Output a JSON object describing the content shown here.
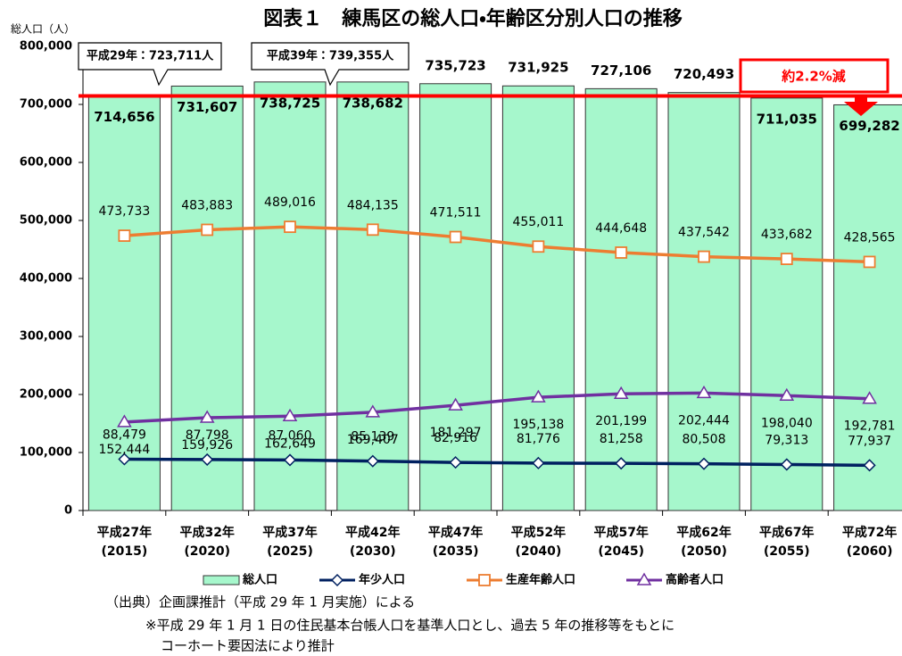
{
  "chart_data": {
    "type": "bar",
    "title": "図表１　練馬区の総人口・年齢区分別人口の推移",
    "y_axis_label": "総人口（人）",
    "categories": [
      [
        "平成27年",
        "(2015)"
      ],
      [
        "平成32年",
        "(2020)"
      ],
      [
        "平成37年",
        "(2025)"
      ],
      [
        "平成42年",
        "(2030)"
      ],
      [
        "平成47年",
        "(2035)"
      ],
      [
        "平成52年",
        "(2040)"
      ],
      [
        "平成57年",
        "(2045)"
      ],
      [
        "平成62年",
        "(2050)"
      ],
      [
        "平成67年",
        "(2055)"
      ],
      [
        "平成72年",
        "(2060)"
      ]
    ],
    "ylim": [
      0,
      800000
    ],
    "yticks": [
      0,
      {
        "value": 100000,
        "label": "100,000"
      },
      {
        "value": 200000,
        "label": "200,000"
      },
      {
        "value": 300000,
        "label": "300,000"
      },
      {
        "value": 400000,
        "label": "400,000"
      },
      {
        "value": 500000,
        "label": "500,000"
      },
      {
        "value": 600000,
        "label": "600,000"
      },
      {
        "value": 700000,
        "label": "700,000"
      },
      {
        "value": 800000,
        "label": "800,000"
      }
    ],
    "grid": false,
    "reference_line": 714656,
    "series": [
      {
        "name": "総人口",
        "type": "bar",
        "color": "#a6f7cc",
        "values": [
          714656,
          731607,
          738725,
          738682,
          735723,
          731925,
          727106,
          720493,
          711035,
          699282
        ],
        "value_labels": [
          "714,656",
          "731,607",
          "738,725",
          "738,682",
          "735,723",
          "731,925",
          "727,106",
          "720,493",
          "711,035",
          "699,282"
        ]
      },
      {
        "name": "年少人口",
        "type": "line",
        "marker": "diamond",
        "color": "#002060",
        "values": [
          88479,
          87798,
          87060,
          85139,
          82916,
          81776,
          81258,
          80508,
          79313,
          77937
        ],
        "value_labels": [
          "88,479",
          "87,798",
          "87,060",
          "85,139",
          "82,916",
          "81,776",
          "81,258",
          "80,508",
          "79,313",
          "77,937"
        ]
      },
      {
        "name": "生産年齢人口",
        "type": "line",
        "marker": "square",
        "color": "#ed7d31",
        "values": [
          473733,
          483883,
          489016,
          484135,
          471511,
          455011,
          444648,
          437542,
          433682,
          428565
        ],
        "value_labels": [
          "473,733",
          "483,883",
          "489,016",
          "484,135",
          "471,511",
          "455,011",
          "444,648",
          "437,542",
          "433,682",
          "428,565"
        ]
      },
      {
        "name": "高齢者人口",
        "type": "line",
        "marker": "triangle",
        "color": "#7030a0",
        "values": [
          152444,
          159926,
          162649,
          169407,
          181297,
          195138,
          201199,
          202444,
          198040,
          192781
        ],
        "value_labels": [
          "152,444",
          "159,926",
          "162,649",
          "169,407",
          "181,297",
          "195,138",
          "201,199",
          "202,444",
          "198,040",
          "192,781"
        ]
      }
    ],
    "annotations": [
      "平成29年：723,711人",
      "平成39年：739,355人",
      "約2.2%減"
    ],
    "notes": [
      "（出典）企画課推計（平成 29 年 1 月実施）による",
      "※平成 29 年 1 月 1 日の住民基本台帳人口を基準人口とし、過去 5 年の推移等をもとに",
      "コーホート要因法により推計"
    ]
  }
}
